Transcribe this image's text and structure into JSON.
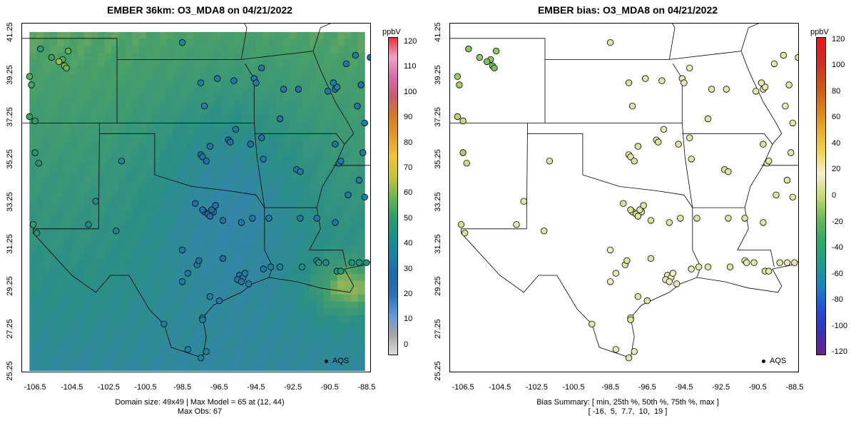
{
  "left_panel": {
    "title": "EMBER 36km: O3_MDA8 on 04/21/2022",
    "summary_line1": "Domain size: 49x49 | Max Model = 65 at (12, 44)",
    "summary_line2": "Max Obs: 67",
    "legend_label": "AQS",
    "colorbar": {
      "unit": "ppbV",
      "ticks": [
        "0",
        "10",
        "20",
        "30",
        "40",
        "50",
        "60",
        "70",
        "80",
        "90",
        "100",
        "110",
        "120"
      ],
      "range": [
        -4,
        122
      ],
      "colors": [
        "#dcdcdc",
        "#a6a6a6",
        "#5c9bd8",
        "#2f6fb8",
        "#1e6aa8",
        "#1f7fa3",
        "#1c8f86",
        "#2f9f6a",
        "#6fb64f",
        "#c8c33d",
        "#f0c33a",
        "#e49a30",
        "#d97a27",
        "#c45d6e",
        "#d96aa8",
        "#f0a0c8",
        "#e83030"
      ]
    },
    "field_colors": {
      "ocean_low": "#3a7fbe",
      "mid": "#2a8e88",
      "high": "#4aa069",
      "peak": "#d9c84a"
    }
  },
  "right_panel": {
    "title": "EMBER bias: O3_MDA8 on 04/21/2022",
    "summary_line1": "Bias Summary: [ min, 25th %, 50th %, 75th %, max ]",
    "summary_line2": "[ -16,  5,  7.7,  10,  19 ]",
    "legend_label": "AQS",
    "colorbar": {
      "unit": "ppbV",
      "ticks": [
        "-120",
        "-100",
        "-80",
        "-60",
        "-40",
        "-20",
        "0",
        "20",
        "40",
        "60",
        "80",
        "100",
        "120"
      ],
      "range": [
        -122,
        122
      ],
      "colors": [
        "#6a1f8a",
        "#3a2fb8",
        "#1f4fd8",
        "#1f7fc0",
        "#1f9a8a",
        "#2fa868",
        "#6ab85a",
        "#c8d870",
        "#f5f0d0",
        "#f0d050",
        "#e8a830",
        "#d87818",
        "#c85020",
        "#d02828",
        "#e81818"
      ]
    }
  },
  "axes": {
    "x_ticks": [
      "-106.5",
      "-104.5",
      "-102.5",
      "-100.5",
      "-98.5",
      "-96.5",
      "-94.5",
      "-92.5",
      "-90.5",
      "-88.5"
    ],
    "y_ticks": [
      "25.25",
      "27.25",
      "29.25",
      "31.25",
      "33.25",
      "35.25",
      "37.25",
      "39.25",
      "41.25"
    ],
    "x_range": [
      -107.2,
      -88.3
    ],
    "y_range": [
      25.25,
      41.7
    ]
  }
}
